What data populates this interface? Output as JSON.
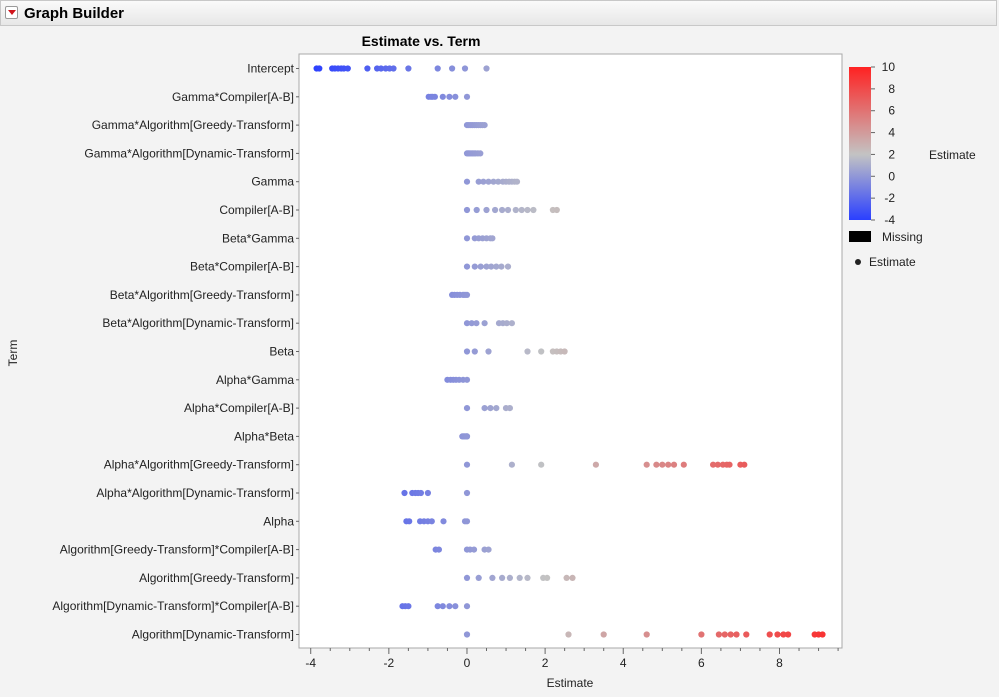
{
  "window": {
    "title": "Graph Builder"
  },
  "chart_data": {
    "type": "scatter",
    "title": "Estimate vs. Term",
    "xlabel": "Estimate",
    "ylabel": "Term",
    "xlim": [
      -4.3,
      9.6
    ],
    "xticks": [
      -4,
      -2,
      0,
      2,
      4,
      6,
      8
    ],
    "grid": false,
    "categories": [
      "Intercept",
      "Gamma*Compiler[A-B]",
      "Gamma*Algorithm[Greedy-Transform]",
      "Gamma*Algorithm[Dynamic-Transform]",
      "Gamma",
      "Compiler[A-B]",
      "Beta*Gamma",
      "Beta*Compiler[A-B]",
      "Beta*Algorithm[Greedy-Transform]",
      "Beta*Algorithm[Dynamic-Transform]",
      "Beta",
      "Alpha*Gamma",
      "Alpha*Compiler[A-B]",
      "Alpha*Beta",
      "Alpha*Algorithm[Greedy-Transform]",
      "Alpha*Algorithm[Dynamic-Transform]",
      "Alpha",
      "Algorithm[Greedy-Transform]*Compiler[A-B]",
      "Algorithm[Greedy-Transform]",
      "Algorithm[Dynamic-Transform]*Compiler[A-B]",
      "Algorithm[Dynamic-Transform]"
    ],
    "series": [
      {
        "values": [
          [
            -3.85,
            -3.78,
            -3.45,
            -3.38,
            -3.3,
            -3.22,
            -3.15,
            -3.05,
            -2.55,
            -2.3,
            -2.2,
            -2.08,
            -1.98,
            -1.88,
            -1.5,
            -0.75,
            -0.38,
            -0.05,
            0.5
          ],
          [
            -0.98,
            -0.92,
            -0.88,
            -0.82,
            -0.62,
            -0.45,
            -0.3,
            0.0
          ],
          [
            0.0,
            0.05,
            0.1,
            0.15,
            0.2,
            0.25,
            0.3,
            0.35,
            0.4,
            0.45
          ],
          [
            0.0,
            0.03,
            0.06,
            0.1,
            0.14,
            0.18,
            0.22,
            0.28,
            0.34
          ],
          [
            0.0,
            0.3,
            0.42,
            0.55,
            0.68,
            0.8,
            0.92,
            1.0,
            1.08,
            1.15,
            1.22,
            1.28
          ],
          [
            0.0,
            0.25,
            0.5,
            0.72,
            0.9,
            1.05,
            1.25,
            1.4,
            1.55,
            1.7,
            2.2,
            2.3
          ],
          [
            0.0,
            0.2,
            0.3,
            0.4,
            0.5,
            0.6,
            0.65
          ],
          [
            0.0,
            0.2,
            0.35,
            0.5,
            0.62,
            0.75,
            0.88,
            1.05
          ],
          [
            -0.38,
            -0.32,
            -0.25,
            -0.18,
            -0.1,
            -0.05,
            0.0
          ],
          [
            0.0,
            0.12,
            0.24,
            0.45,
            0.82,
            0.92,
            1.02,
            1.15
          ],
          [
            0.0,
            0.2,
            0.55,
            1.55,
            1.9,
            2.2,
            2.3,
            2.4,
            2.5
          ],
          [
            -0.5,
            -0.42,
            -0.35,
            -0.28,
            -0.2,
            -0.1,
            0.0
          ],
          [
            0.0,
            0.45,
            0.6,
            0.75,
            1.0,
            1.1
          ],
          [
            -0.12,
            -0.09,
            -0.06,
            -0.03,
            0.0,
            0.0
          ],
          [
            0.0,
            1.15,
            1.9,
            3.3,
            4.6,
            4.85,
            5.0,
            5.15,
            5.3,
            5.55,
            6.3,
            6.42,
            6.55,
            6.65,
            6.72,
            7.0,
            7.1
          ],
          [
            -1.6,
            -1.4,
            -1.32,
            -1.25,
            -1.18,
            -1.0,
            0.0
          ],
          [
            -1.55,
            -1.48,
            -1.2,
            -1.1,
            -1.0,
            -0.9,
            -0.6,
            -0.05,
            0.0
          ],
          [
            -0.8,
            -0.72,
            0.0,
            0.08,
            0.18,
            0.45,
            0.55
          ],
          [
            0.0,
            0.3,
            0.65,
            0.9,
            1.1,
            1.35,
            1.55,
            1.95,
            2.05,
            2.55,
            2.7
          ],
          [
            -1.65,
            -1.58,
            -1.5,
            -0.75,
            -0.62,
            -0.45,
            -0.3,
            0.0
          ],
          [
            0.0,
            2.6,
            3.5,
            4.6,
            6.0,
            6.45,
            6.6,
            6.75,
            6.9,
            7.15,
            7.75,
            7.95,
            8.1,
            8.22,
            8.9,
            9.0,
            9.1
          ]
        ]
      }
    ],
    "color_scale": {
      "min": -4,
      "max": 10,
      "ticks": [
        -4,
        -2,
        0,
        2,
        4,
        6,
        8,
        10
      ],
      "colors": [
        "#2a3fff",
        "#c3c3c3",
        "#ff2222"
      ],
      "title": "Estimate"
    },
    "legend": {
      "missing_label": "Missing",
      "marker_label": "Estimate",
      "placement": "right"
    }
  }
}
